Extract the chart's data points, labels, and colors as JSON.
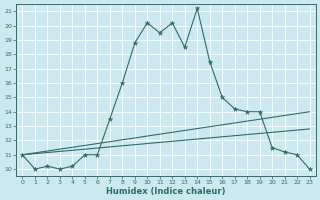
{
  "xlabel": "Humidex (Indice chaleur)",
  "background_color": "#cde9f0",
  "grid_color": "#ffffff",
  "line_color": "#2d6e63",
  "xlim": [
    -0.5,
    23.5
  ],
  "ylim": [
    9.5,
    21.5
  ],
  "xticks": [
    0,
    1,
    2,
    3,
    4,
    5,
    6,
    7,
    8,
    9,
    10,
    11,
    12,
    13,
    14,
    15,
    16,
    17,
    18,
    19,
    20,
    21,
    22,
    23
  ],
  "yticks": [
    10,
    11,
    12,
    13,
    14,
    15,
    16,
    17,
    18,
    19,
    20,
    21
  ],
  "series_main": {
    "x": [
      0,
      1,
      2,
      3,
      4,
      5,
      6,
      7,
      8,
      9,
      10,
      11,
      12,
      13,
      14,
      15,
      16,
      17,
      18,
      19,
      20,
      21,
      22,
      23
    ],
    "y": [
      11,
      10,
      10.2,
      10,
      10.2,
      11,
      11,
      13.5,
      16,
      18.8,
      20.2,
      19.5,
      20.2,
      18.5,
      21.2,
      17.5,
      15,
      14.2,
      14,
      14,
      11.5,
      11.2,
      11,
      10
    ]
  },
  "series_line1": {
    "x": [
      0,
      23
    ],
    "y": [
      11,
      14
    ]
  },
  "series_line2": {
    "x": [
      0,
      23
    ],
    "y": [
      11,
      12.8
    ]
  }
}
